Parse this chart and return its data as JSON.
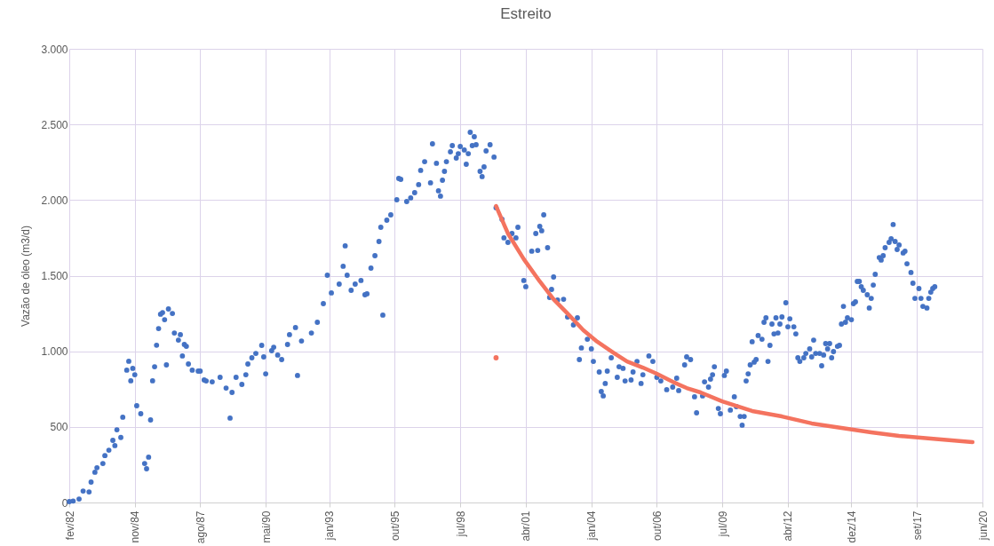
{
  "chart_data": {
    "type": "scatter",
    "title": "Estreito",
    "ylabel": "Vazão de óleo (m3/d)",
    "xlim": [
      "1982-02",
      "2020-06"
    ],
    "xticks": [
      {
        "value": "1982-02",
        "label": "fev/82"
      },
      {
        "value": "1984-11",
        "label": "nov/84"
      },
      {
        "value": "1987-08",
        "label": "ago/87"
      },
      {
        "value": "1990-05",
        "label": "mai/90"
      },
      {
        "value": "1993-01",
        "label": "jan/93"
      },
      {
        "value": "1995-10",
        "label": "out/95"
      },
      {
        "value": "1998-07",
        "label": "jul/98"
      },
      {
        "value": "2001-04",
        "label": "abr/01"
      },
      {
        "value": "2004-01",
        "label": "jan/04"
      },
      {
        "value": "2006-10",
        "label": "out/06"
      },
      {
        "value": "2009-07",
        "label": "jul/09"
      },
      {
        "value": "2012-04",
        "label": "abr/12"
      },
      {
        "value": "2014-12",
        "label": "dez/14"
      },
      {
        "value": "2017-09",
        "label": "set/17"
      },
      {
        "value": "2020-06",
        "label": "jun/20"
      }
    ],
    "ylim": [
      0,
      3000
    ],
    "yticks": [
      0,
      500,
      {
        "value": 1000,
        "label": "1.000"
      },
      {
        "value": 1500,
        "label": "1.500"
      },
      {
        "value": 2000,
        "label": "2.000"
      },
      {
        "value": 2500,
        "label": "2.500"
      },
      {
        "value": 3000,
        "label": "3.000"
      }
    ],
    "grid": true,
    "marker": "circle",
    "series": [
      {
        "color": "#4472c4",
        "x": [
          "1982-02",
          "1982-04",
          "1982-07",
          "1982-09",
          "1982-12",
          "1983-01",
          "1983-03",
          "1983-04",
          "1983-07",
          "1983-08",
          "1983-10",
          "1983-12",
          "1984-01",
          "1984-02",
          "1984-04",
          "1984-05",
          "1984-07",
          "1984-08",
          "1984-09",
          "1984-10",
          "1984-11",
          "1984-12",
          "1985-02",
          "1985-04",
          "1985-05",
          "1985-06",
          "1985-07",
          "1985-08",
          "1985-09",
          "1985-10",
          "1985-11",
          "1985-12",
          "1986-01",
          "1986-02",
          "1986-03",
          "1986-04",
          "1986-06",
          "1986-07",
          "1986-09",
          "1986-10",
          "1986-11",
          "1986-12",
          "1987-01",
          "1987-02",
          "1987-04",
          "1987-07",
          "1987-08",
          "1987-10",
          "1987-11",
          "1988-02",
          "1988-06",
          "1988-09",
          "1988-11",
          "1988-12",
          "1989-02",
          "1989-05",
          "1989-07",
          "1989-08",
          "1989-10",
          "1989-12",
          "1990-03",
          "1990-04",
          "1990-05",
          "1990-08",
          "1990-09",
          "1990-11",
          "1991-01",
          "1991-04",
          "1991-05",
          "1991-08",
          "1991-09",
          "1991-11",
          "1992-04",
          "1992-07",
          "1992-10",
          "1992-12",
          "1993-02",
          "1993-06",
          "1993-08",
          "1993-09",
          "1993-10",
          "1993-12",
          "1994-02",
          "1994-05",
          "1994-07",
          "1994-08",
          "1994-10",
          "1994-12",
          "1995-02",
          "1995-03",
          "1995-04",
          "1995-06",
          "1995-08",
          "1995-11",
          "1995-12",
          "1996-01",
          "1996-04",
          "1996-06",
          "1996-08",
          "1996-10",
          "1996-11",
          "1997-01",
          "1997-04",
          "1997-05",
          "1997-07",
          "1997-08",
          "1997-09",
          "1997-10",
          "1997-11",
          "1997-12",
          "1998-02",
          "1998-03",
          "1998-05",
          "1998-06",
          "1998-07",
          "1998-09",
          "1998-10",
          "1998-11",
          "1998-12",
          "1999-01",
          "1999-02",
          "1999-03",
          "1999-05",
          "1999-06",
          "1999-07",
          "1999-08",
          "1999-10",
          "1999-12",
          "2000-01",
          "2000-04",
          "2000-05",
          "2000-07",
          "2000-09",
          "2000-11",
          "2000-12",
          "2001-03",
          "2001-04",
          "2001-07",
          "2001-09",
          "2001-10",
          "2001-11",
          "2001-12",
          "2002-01",
          "2002-03",
          "2002-04",
          "2002-05",
          "2002-06",
          "2002-08",
          "2002-11",
          "2003-01",
          "2003-04",
          "2003-06",
          "2003-07",
          "2003-08",
          "2003-11",
          "2004-01",
          "2004-02",
          "2004-05",
          "2004-06",
          "2004-07",
          "2004-08",
          "2004-09",
          "2004-11",
          "2005-02",
          "2005-03",
          "2005-05",
          "2005-06",
          "2005-09",
          "2005-10",
          "2005-12",
          "2006-02",
          "2006-03",
          "2006-06",
          "2006-08",
          "2006-10",
          "2006-12",
          "2007-03",
          "2007-06",
          "2007-08",
          "2007-09",
          "2007-12",
          "2008-01",
          "2008-03",
          "2008-05",
          "2008-06",
          "2008-09",
          "2008-10",
          "2008-12",
          "2009-01",
          "2009-02",
          "2009-03",
          "2009-05",
          "2009-06",
          "2009-08",
          "2009-09",
          "2009-11",
          "2010-01",
          "2010-02",
          "2010-04",
          "2010-05",
          "2010-06",
          "2010-07",
          "2010-08",
          "2010-09",
          "2010-10",
          "2010-11",
          "2010-12",
          "2011-01",
          "2011-03",
          "2011-04",
          "2011-05",
          "2011-06",
          "2011-07",
          "2011-08",
          "2011-09",
          "2011-10",
          "2011-11",
          "2011-12",
          "2012-01",
          "2012-03",
          "2012-04",
          "2012-05",
          "2012-07",
          "2012-08",
          "2012-09",
          "2012-10",
          "2012-12",
          "2013-01",
          "2013-03",
          "2013-04",
          "2013-05",
          "2013-06",
          "2013-08",
          "2013-09",
          "2013-10",
          "2013-11",
          "2013-12",
          "2014-01",
          "2014-02",
          "2014-03",
          "2014-05",
          "2014-06",
          "2014-07",
          "2014-08",
          "2014-09",
          "2014-10",
          "2014-12",
          "2015-01",
          "2015-02",
          "2015-03",
          "2015-04",
          "2015-05",
          "2015-06",
          "2015-08",
          "2015-09",
          "2015-10",
          "2015-11",
          "2015-12",
          "2016-02",
          "2016-03",
          "2016-04",
          "2016-05",
          "2016-07",
          "2016-08",
          "2016-09",
          "2016-10",
          "2016-11",
          "2016-12",
          "2017-02",
          "2017-03",
          "2017-04",
          "2017-06",
          "2017-07",
          "2017-08",
          "2017-10",
          "2017-11",
          "2017-12",
          "2018-02",
          "2018-03",
          "2018-04",
          "2018-05",
          "2018-06"
        ],
        "values": [
          6,
          10,
          23,
          76,
          70,
          135,
          200,
          230,
          258,
          310,
          346,
          411,
          376,
          481,
          430,
          564,
          875,
          934,
          805,
          887,
          845,
          640,
          587,
          258,
          223,
          300,
          546,
          805,
          898,
          1040,
          1150,
          1245,
          1256,
          1209,
          910,
          1280,
          1250,
          1121,
          1074,
          1110,
          969,
          1045,
          1033,
          916,
          875,
          869,
          869,
          810,
          804,
          798,
          828,
          757,
          558,
          728,
          828,
          781,
          845,
          916,
          957,
          986,
          1039,
          963,
          851,
          1004,
          1027,
          975,
          945,
          1045,
          1110,
          1157,
          840,
          1068,
          1121,
          1192,
          1315,
          1503,
          1386,
          1444,
          1562,
          1697,
          1503,
          1403,
          1444,
          1468,
          1374,
          1380,
          1550,
          1632,
          1726,
          1820,
          1239,
          1867,
          1902,
          2002,
          2143,
          2137,
          1990,
          2014,
          2049,
          2102,
          2196,
          2254,
          2114,
          2372,
          2243,
          2061,
          2026,
          2131,
          2190,
          2254,
          2319,
          2360,
          2278,
          2307,
          2354,
          2331,
          2237,
          2307,
          2448,
          2360,
          2419,
          2366,
          2190,
          2155,
          2219,
          2325,
          2366,
          2284,
          1949,
          1873,
          1750,
          1720,
          1779,
          1750,
          1820,
          1468,
          1427,
          1662,
          1779,
          1667,
          1826,
          1797,
          1902,
          1685,
          1356,
          1409,
          1491,
          1339,
          1344,
          1227,
          1174,
          1221,
          945,
          1022,
          1080,
          1016,
          933,
          863,
          734,
          705,
          787,
          869,
          957,
          828,
          898,
          887,
          804,
          810,
          863,
          933,
          787,
          845,
          969,
          933,
          828,
          804,
          746,
          763,
          822,
          740,
          910,
          963,
          945,
          699,
          593,
          705,
          798,
          763,
          816,
          845,
          898,
          622,
          587,
          840,
          869,
          611,
          699,
          634,
          569,
          511,
          569,
          804,
          851,
          910,
          1063,
          928,
          945,
          1104,
          1080,
          1192,
          1221,
          933,
          1039,
          1180,
          1115,
          1221,
          1121,
          1180,
          1227,
          1321,
          1162,
          1215,
          1162,
          1115,
          957,
          933,
          957,
          986,
          1016,
          963,
          1074,
          986,
          986,
          904,
          975,
          1051,
          1016,
          1051,
          957,
          998,
          1033,
          1039,
          1180,
          1297,
          1192,
          1221,
          1209,
          1315,
          1327,
          1462,
          1462,
          1427,
          1403,
          1374,
          1286,
          1350,
          1438,
          1509,
          1620,
          1603,
          1632,
          1685,
          1720,
          1744,
          1838,
          1726,
          1673,
          1703,
          1650,
          1662,
          1579,
          1521,
          1450,
          1350,
          1415,
          1350,
          1297,
          1286,
          1350,
          1391,
          1415,
          1427
        ]
      },
      {
        "type": "line",
        "marker": "none",
        "color": "#f4735f",
        "x": [
          "2000-01",
          "2000-07",
          "2001-03",
          "2001-11",
          "2002-06",
          "2003-01",
          "2003-09",
          "2004-04",
          "2004-12",
          "2005-07",
          "2006-03",
          "2006-10",
          "2007-06",
          "2008-01",
          "2008-08",
          "2009-07",
          "2010-10",
          "2012-01",
          "2013-04",
          "2014-07",
          "2015-10",
          "2016-12",
          "2018-04",
          "2020-01"
        ],
        "values": [
          1960,
          1779,
          1609,
          1462,
          1344,
          1250,
          1139,
          1063,
          992,
          933,
          892,
          851,
          798,
          757,
          728,
          669,
          605,
          569,
          523,
          493,
          464,
          440,
          423,
          399
        ]
      },
      {
        "color": "#f4735f",
        "x": [
          "2000-01"
        ],
        "values": [
          957
        ]
      }
    ]
  }
}
